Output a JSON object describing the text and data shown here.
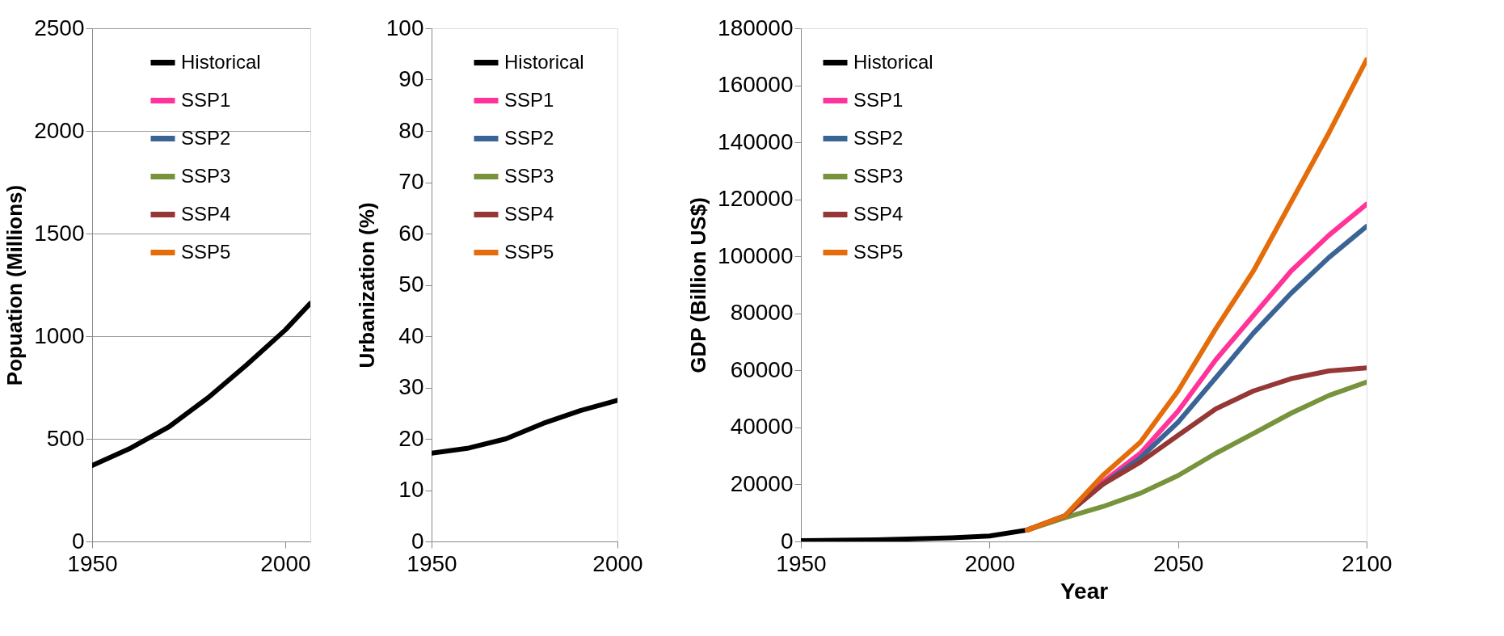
{
  "chart_data": [
    {
      "type": "line",
      "ylabel": "Popuation (Millions)",
      "xlim": [
        1950,
        2006.5
      ],
      "xticks": [
        1950,
        2000
      ],
      "ylim": [
        0,
        2500
      ],
      "yticks": [
        0,
        500,
        1000,
        1500,
        2000,
        2500
      ],
      "grid": "y",
      "legend": "top",
      "marker": "none",
      "line_style": "solid",
      "series": [
        {
          "name": "Historical",
          "color": "#000000",
          "x": [
            1950,
            1960,
            1970,
            1980,
            1990,
            2000,
            2006.5
          ],
          "values": [
            370,
            455,
            560,
            700,
            860,
            1030,
            1160
          ]
        },
        {
          "name": "SSP1",
          "color": "#ff3399"
        },
        {
          "name": "SSP2",
          "color": "#3a6496"
        },
        {
          "name": "SSP3",
          "color": "#77933c"
        },
        {
          "name": "SSP4",
          "color": "#953735"
        },
        {
          "name": "SSP5",
          "color": "#e46c0a"
        }
      ]
    },
    {
      "type": "line",
      "ylabel": "Urbanization (%)",
      "xlim": [
        1950,
        2000
      ],
      "xticks": [
        1950,
        2000
      ],
      "ylim": [
        0,
        100
      ],
      "yticks": [
        0,
        10,
        20,
        30,
        40,
        50,
        60,
        70,
        80,
        90,
        100
      ],
      "grid": false,
      "legend": "top",
      "marker": "none",
      "line_style": "solid",
      "series": [
        {
          "name": "Historical",
          "color": "#000000",
          "x": [
            1950,
            1960,
            1970,
            1980,
            1990,
            2000
          ],
          "values": [
            17.2,
            18.2,
            20,
            23,
            25.5,
            27.5
          ]
        },
        {
          "name": "SSP1",
          "color": "#ff3399"
        },
        {
          "name": "SSP2",
          "color": "#3a6496"
        },
        {
          "name": "SSP3",
          "color": "#77933c"
        },
        {
          "name": "SSP4",
          "color": "#953735"
        },
        {
          "name": "SSP5",
          "color": "#e46c0a"
        }
      ]
    },
    {
      "type": "line",
      "xlabel": "Year",
      "ylabel": "GDP (Billion US$)",
      "xlim": [
        1950,
        2100
      ],
      "xticks": [
        1950,
        2000,
        2050,
        2100
      ],
      "ylim": [
        0,
        180000
      ],
      "yticks": [
        0,
        20000,
        40000,
        60000,
        80000,
        100000,
        120000,
        140000,
        160000,
        180000
      ],
      "grid": false,
      "legend": "top left",
      "marker": "none",
      "line_style": "solid",
      "series": [
        {
          "name": "Historical",
          "color": "#000000",
          "x": [
            1950,
            1960,
            1970,
            1980,
            1990,
            2000,
            2010
          ],
          "values": [
            300,
            400,
            600,
            900,
            1300,
            1900,
            4000
          ]
        },
        {
          "name": "SSP1",
          "color": "#ff3399",
          "x": [
            2010,
            2020,
            2030,
            2040,
            2050,
            2060,
            2070,
            2080,
            2090,
            2100
          ],
          "values": [
            4000,
            9000,
            20800,
            30900,
            45700,
            63700,
            79300,
            94900,
            107400,
            118300
          ]
        },
        {
          "name": "SSP2",
          "color": "#3a6496",
          "x": [
            2010,
            2020,
            2030,
            2040,
            2050,
            2060,
            2070,
            2080,
            2090,
            2100
          ],
          "values": [
            4000,
            9000,
            20000,
            29300,
            41800,
            57400,
            73100,
            87100,
            99600,
            110500
          ]
        },
        {
          "name": "SSP3",
          "color": "#77933c",
          "x": [
            2010,
            2020,
            2030,
            2040,
            2050,
            2060,
            2070,
            2080,
            2090,
            2100
          ],
          "values": [
            4000,
            8300,
            12200,
            16900,
            23100,
            30900,
            37900,
            45000,
            51200,
            55900
          ]
        },
        {
          "name": "SSP4",
          "color": "#953735",
          "x": [
            2010,
            2020,
            2030,
            2040,
            2050,
            2060,
            2070,
            2080,
            2090,
            2100
          ],
          "values": [
            4000,
            9000,
            20000,
            27800,
            37200,
            46500,
            52800,
            57100,
            59800,
            60900
          ]
        },
        {
          "name": "SSP5",
          "color": "#e46c0a",
          "x": [
            2010,
            2020,
            2030,
            2040,
            2050,
            2060,
            2070,
            2080,
            2090,
            2100
          ],
          "values": [
            4000,
            9000,
            23100,
            34800,
            52800,
            74600,
            94900,
            119100,
            143300,
            169000
          ]
        }
      ]
    }
  ]
}
